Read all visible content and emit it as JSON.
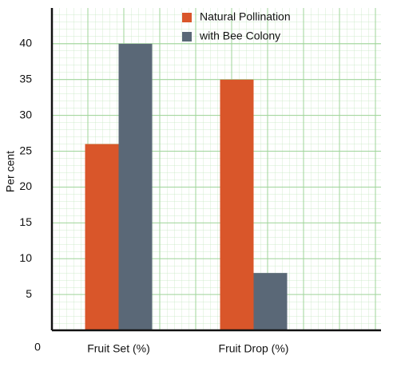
{
  "chart_data": {
    "type": "bar",
    "y_label": "Per cent",
    "categories": [
      "Fruit Set (%)",
      "Fruit Drop (%)"
    ],
    "series": [
      {
        "name": "Natural Pollination",
        "color": "#d9562a",
        "values": [
          26,
          35
        ]
      },
      {
        "name": "with Bee Colony",
        "color": "#5a6877",
        "values": [
          40,
          8
        ]
      }
    ],
    "ylim": [
      0,
      45
    ],
    "yticks": [
      0,
      5,
      10,
      15,
      20,
      25,
      30,
      35,
      40
    ],
    "grid": true,
    "grid_color": "#9fd49a"
  }
}
